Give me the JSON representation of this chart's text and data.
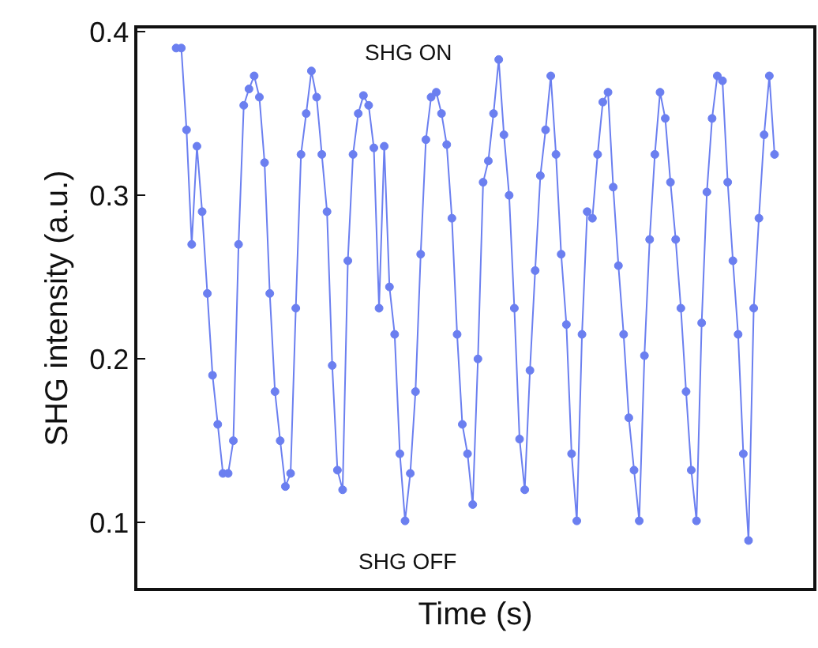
{
  "chart_data": {
    "type": "line",
    "xlabel": "Time (s)",
    "ylabel": "SHG intensity (a.u.)",
    "annotations": [
      "SHG ON",
      "SHG OFF"
    ],
    "categories": [
      null,
      null,
      null,
      null,
      null,
      null,
      null,
      null,
      null,
      null,
      null,
      null,
      null,
      null,
      null,
      null,
      null,
      null,
      null,
      null,
      null,
      null,
      null,
      null,
      null,
      null,
      null,
      null,
      null,
      null,
      null,
      null,
      null,
      null,
      null,
      null,
      null,
      null,
      null,
      null,
      null,
      null,
      null,
      null,
      null,
      null,
      null,
      null,
      null,
      null,
      null,
      null,
      null,
      null,
      null,
      null,
      null,
      null,
      null,
      null,
      null,
      null,
      null,
      null,
      null,
      null,
      null,
      null,
      null,
      null,
      null,
      null,
      null,
      null,
      null,
      null,
      null,
      null,
      null,
      null,
      null,
      null,
      null,
      null,
      null,
      null,
      null,
      null,
      null,
      null,
      null,
      null,
      null,
      null,
      null,
      null,
      null,
      null,
      null,
      null,
      null,
      null,
      null,
      null,
      null,
      null,
      null,
      null,
      null,
      null,
      null,
      null,
      null,
      null,
      null,
      null
    ],
    "series": [
      {
        "color": "#6b7ff0",
        "values": [
          0.39,
          0.39,
          0.34,
          0.27,
          0.33,
          0.29,
          0.24,
          0.19,
          0.16,
          0.13,
          0.13,
          0.15,
          0.27,
          0.355,
          0.365,
          0.373,
          0.36,
          0.32,
          0.24,
          0.18,
          0.15,
          0.122,
          0.13,
          0.231,
          0.325,
          0.35,
          0.376,
          0.36,
          0.325,
          0.29,
          0.196,
          0.132,
          0.12,
          0.26,
          0.325,
          0.35,
          0.361,
          0.355,
          0.329,
          0.231,
          0.33,
          0.244,
          0.215,
          0.142,
          0.101,
          0.13,
          0.18,
          0.264,
          0.334,
          0.36,
          0.363,
          0.35,
          0.331,
          0.286,
          0.215,
          0.16,
          0.142,
          0.111,
          0.2,
          0.308,
          0.321,
          0.35,
          0.383,
          0.337,
          0.3,
          0.231,
          0.151,
          0.12,
          0.193,
          0.254,
          0.312,
          0.34,
          0.373,
          0.325,
          0.264,
          0.221,
          0.142,
          0.101,
          0.215,
          0.29,
          0.286,
          0.325,
          0.357,
          0.363,
          0.305,
          0.257,
          0.215,
          0.164,
          0.132,
          0.101,
          0.202,
          0.273,
          0.325,
          0.363,
          0.347,
          0.308,
          0.273,
          0.231,
          0.18,
          0.132,
          0.101,
          0.222,
          0.302,
          0.347,
          0.373,
          0.37,
          0.308,
          0.26,
          0.215,
          0.142,
          0.089,
          0.231,
          0.286,
          0.337,
          0.373,
          0.325
        ]
      }
    ],
    "ylim": [
      0.06,
      0.402
    ],
    "yticks": [
      {
        "value": 0.1,
        "label": "0.1"
      },
      {
        "value": 0.2,
        "label": "0.2"
      },
      {
        "value": 0.3,
        "label": "0.3"
      },
      {
        "value": 0.4,
        "label": "0.4"
      }
    ],
    "tick_labels": "y",
    "grid": false,
    "marker": "circle",
    "line_style": "solid"
  }
}
